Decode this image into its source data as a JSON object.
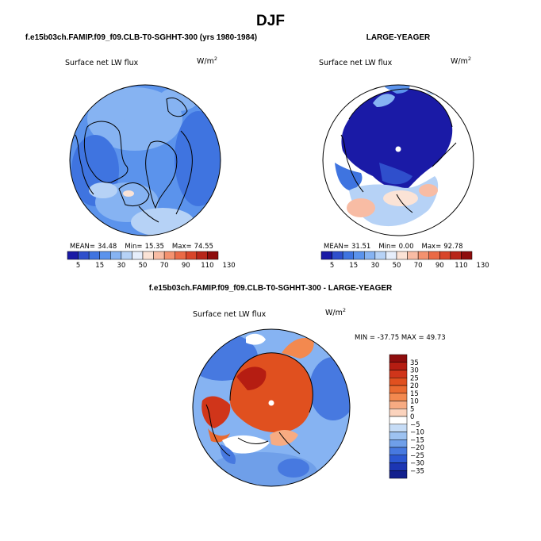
{
  "page": {
    "title": "DJF"
  },
  "chart_data": [
    {
      "type": "heatmap",
      "projection": "north-polar-stereographic",
      "case_title": "f.e15b03ch.FAMIP.f09_f09.CLB-T0-SGHHT-300 (yrs 1980-1984)",
      "subtitle": "Surface net LW flux",
      "units_label": "W/m",
      "units_exponent": "2",
      "stats": {
        "mean_label": "MEAN=",
        "mean": "34.48",
        "min_label": "Min=",
        "min": "15.35",
        "max_label": "Max=",
        "max": "74.55"
      },
      "colorbar": {
        "orientation": "horizontal",
        "tick_labels": [
          "5",
          "15",
          "30",
          "50",
          "70",
          "90",
          "110",
          "130"
        ],
        "colors": [
          "#1a1aa6",
          "#2f4fcc",
          "#3f74e0",
          "#5b93ec",
          "#86b3f2",
          "#b6d2f6",
          "#e6eefb",
          "#fbe3d6",
          "#f8bca4",
          "#f4926f",
          "#ea6a46",
          "#d8452a",
          "#b8261a",
          "#8e0d0d"
        ]
      }
    },
    {
      "type": "heatmap",
      "projection": "north-polar-stereographic",
      "case_title": "LARGE-YEAGER",
      "subtitle": "Surface net LW flux",
      "units_label": "W/m",
      "units_exponent": "2",
      "stats": {
        "mean_label": "MEAN=",
        "mean": "31.51",
        "min_label": "Min=",
        "min": "0.00",
        "max_label": "Max=",
        "max": "92.78"
      },
      "colorbar": {
        "orientation": "horizontal",
        "tick_labels": [
          "5",
          "15",
          "30",
          "50",
          "70",
          "90",
          "110",
          "130"
        ],
        "colors": [
          "#1a1aa6",
          "#2f4fcc",
          "#3f74e0",
          "#5b93ec",
          "#86b3f2",
          "#b6d2f6",
          "#e6eefb",
          "#fbe3d6",
          "#f8bca4",
          "#f4926f",
          "#ea6a46",
          "#d8452a",
          "#b8261a",
          "#8e0d0d"
        ]
      }
    },
    {
      "type": "heatmap",
      "projection": "north-polar-stereographic",
      "case_title": "f.e15b03ch.FAMIP.f09_f09.CLB-T0-SGHHT-300 - LARGE-YEAGER",
      "subtitle": "Surface net LW flux",
      "units_label": "W/m",
      "units_exponent": "2",
      "minmax_text": "MIN = -37.75 MAX = 49.73",
      "min": -37.75,
      "max": 49.73,
      "colorbar": {
        "orientation": "vertical",
        "tick_labels": [
          "35",
          "30",
          "25",
          "20",
          "15",
          "10",
          "5",
          "0",
          "−5",
          "−10",
          "−15",
          "−20",
          "−25",
          "−30",
          "−35"
        ],
        "colors": [
          "#8e0d0d",
          "#b51d12",
          "#d0351a",
          "#e0501f",
          "#ea6a30",
          "#f3894f",
          "#f7ab82",
          "#fbd3bd",
          "#ffffff",
          "#c6dcf6",
          "#9dc2f1",
          "#6f9fe9",
          "#4779e0",
          "#2b57d2",
          "#1c36b3",
          "#12208e"
        ]
      }
    }
  ]
}
